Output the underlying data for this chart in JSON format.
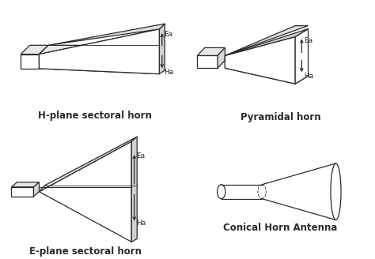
{
  "line_color": "#2a2a2a",
  "labels": {
    "h_plane": "H-plane sectoral horn",
    "pyramidal": "Pyramidal horn",
    "e_plane": "E-plane sectoral horn",
    "conical": "Conical Horn Antenna"
  },
  "label_fontsize": 8.5,
  "arrow_label_fontsize": 6.5
}
